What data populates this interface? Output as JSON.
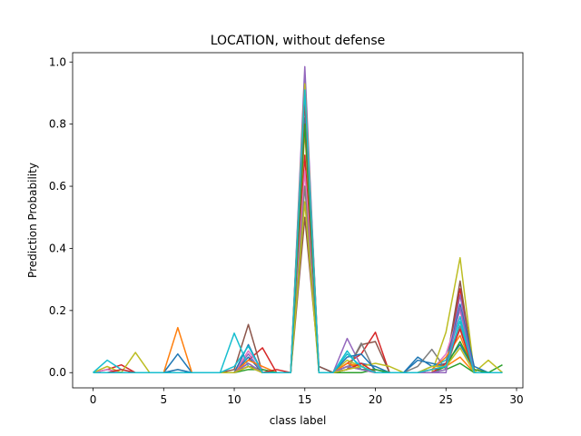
{
  "chart_data": {
    "type": "line",
    "title": "LOCATION, without defense",
    "xlabel": "class label",
    "ylabel": "Prediction Probability",
    "xlim": [
      -1.45,
      30.45
    ],
    "ylim": [
      -0.049,
      1.03
    ],
    "xticks": [
      0,
      5,
      10,
      15,
      20,
      25,
      30
    ],
    "xtick_labels": [
      "0",
      "5",
      "10",
      "15",
      "20",
      "25",
      "30"
    ],
    "yticks": [
      0.0,
      0.2,
      0.4,
      0.6,
      0.8,
      1.0
    ],
    "ytick_labels": [
      "0.0",
      "0.2",
      "0.4",
      "0.6",
      "0.8",
      "1.0"
    ],
    "grid": false,
    "x": [
      0,
      1,
      2,
      3,
      4,
      5,
      6,
      7,
      8,
      9,
      10,
      11,
      12,
      13,
      14,
      15,
      16,
      17,
      18,
      19,
      20,
      21,
      22,
      23,
      24,
      25,
      26,
      27,
      28,
      29
    ],
    "series": [
      {
        "color": "#1f77b4",
        "values": [
          0,
          0.01,
          0,
          0,
          0,
          0,
          0.06,
          0,
          0,
          0,
          0,
          0.05,
          0,
          0,
          0,
          0.82,
          0.02,
          0,
          0.02,
          0.03,
          0.02,
          0,
          0,
          0.05,
          0.02,
          0.03,
          0.09,
          0.01,
          0,
          0
        ]
      },
      {
        "color": "#ff7f0e",
        "values": [
          0,
          0,
          0,
          0,
          0,
          0,
          0.145,
          0,
          0,
          0,
          0,
          0.03,
          0,
          0,
          0,
          0.78,
          0,
          0,
          0.03,
          0.01,
          0,
          0,
          0,
          0,
          0.01,
          0.02,
          0.05,
          0,
          0,
          0
        ]
      },
      {
        "color": "#2ca02c",
        "values": [
          0,
          0,
          0,
          0,
          0,
          0,
          0,
          0,
          0,
          0,
          0,
          0.02,
          0.01,
          0,
          0,
          0.92,
          0,
          0,
          0,
          0,
          0.01,
          0,
          0,
          0,
          0,
          0.01,
          0.03,
          0,
          0,
          0.025
        ]
      },
      {
        "color": "#d62728",
        "values": [
          0,
          0.01,
          0.025,
          0,
          0,
          0,
          0,
          0,
          0,
          0,
          0,
          0.04,
          0.08,
          0,
          0,
          0.7,
          0,
          0,
          0.03,
          0.06,
          0.13,
          0,
          0,
          0,
          0.01,
          0.02,
          0.27,
          0.01,
          0,
          0
        ]
      },
      {
        "color": "#9467bd",
        "values": [
          0,
          0,
          0,
          0,
          0,
          0,
          0,
          0,
          0,
          0,
          0,
          0.06,
          0,
          0,
          0,
          0.985,
          0,
          0,
          0.11,
          0.02,
          0,
          0,
          0,
          0,
          0,
          0,
          0.25,
          0,
          0,
          0
        ]
      },
      {
        "color": "#8c564b",
        "values": [
          0,
          0,
          0,
          0,
          0,
          0,
          0,
          0,
          0,
          0,
          0.01,
          0.155,
          0,
          0,
          0,
          0.5,
          0.02,
          0,
          0.01,
          0.09,
          0.1,
          0,
          0,
          0,
          0,
          0.02,
          0.295,
          0,
          0,
          0
        ]
      },
      {
        "color": "#e377c2",
        "values": [
          0,
          0.01,
          0,
          0,
          0,
          0,
          0,
          0,
          0,
          0,
          0,
          0.07,
          0.01,
          0,
          0,
          0.65,
          0,
          0,
          0.02,
          0.01,
          0,
          0,
          0,
          0,
          0.01,
          0.06,
          0.2,
          0,
          0,
          0
        ]
      },
      {
        "color": "#7f7f7f",
        "values": [
          0,
          0,
          0,
          0,
          0,
          0,
          0.01,
          0,
          0,
          0,
          0,
          0.03,
          0,
          0,
          0,
          0.6,
          0,
          0,
          0.01,
          0.095,
          0,
          0,
          0,
          0.02,
          0.075,
          0.01,
          0.15,
          0,
          0,
          0
        ]
      },
      {
        "color": "#bcbd22",
        "values": [
          0,
          0.02,
          0,
          0.065,
          0,
          0,
          0,
          0,
          0,
          0,
          0,
          0.02,
          0,
          0,
          0,
          0.55,
          0,
          0,
          0.04,
          0.02,
          0.03,
          0.02,
          0,
          0,
          0,
          0.13,
          0.37,
          0,
          0.04,
          0
        ]
      },
      {
        "color": "#17becf",
        "values": [
          0,
          0.04,
          0.01,
          0,
          0,
          0,
          0,
          0,
          0,
          0,
          0.127,
          0.02,
          0,
          0,
          0,
          0.87,
          0,
          0,
          0.07,
          0.01,
          0,
          0,
          0,
          0,
          0.02,
          0.04,
          0.18,
          0,
          0,
          0
        ]
      },
      {
        "color": "#1f77b4",
        "values": [
          0,
          0,
          0,
          0,
          0,
          0,
          0.01,
          0,
          0,
          0,
          0,
          0.09,
          0,
          0,
          0,
          0.95,
          0,
          0,
          0.05,
          0.06,
          0.01,
          0,
          0,
          0.04,
          0.03,
          0.02,
          0.22,
          0.02,
          0,
          0
        ]
      },
      {
        "color": "#ff7f0e",
        "values": [
          0,
          0,
          0,
          0,
          0,
          0,
          0,
          0,
          0,
          0,
          0,
          0.04,
          0.02,
          0,
          0,
          0.9,
          0,
          0,
          0.03,
          0.02,
          0,
          0,
          0,
          0,
          0.01,
          0.05,
          0.12,
          0,
          0,
          0
        ]
      },
      {
        "color": "#2ca02c",
        "values": [
          0,
          0,
          0,
          0,
          0,
          0,
          0,
          0,
          0,
          0,
          0,
          0.01,
          0.01,
          0,
          0,
          0.8,
          0,
          0,
          0.02,
          0.01,
          0.01,
          0,
          0,
          0,
          0,
          0.02,
          0.1,
          0.01,
          0,
          0
        ]
      },
      {
        "color": "#d62728",
        "values": [
          0,
          0,
          0.01,
          0,
          0,
          0,
          0,
          0,
          0,
          0,
          0,
          0.02,
          0,
          0.01,
          0,
          0.88,
          0,
          0,
          0.01,
          0.03,
          0,
          0,
          0,
          0,
          0,
          0.03,
          0.14,
          0,
          0,
          0
        ]
      },
      {
        "color": "#9467bd",
        "values": [
          0,
          0,
          0,
          0,
          0,
          0,
          0,
          0,
          0,
          0,
          0,
          0.03,
          0,
          0,
          0,
          0.96,
          0,
          0,
          0.02,
          0.01,
          0,
          0,
          0,
          0,
          0,
          0.01,
          0.21,
          0,
          0,
          0
        ]
      },
      {
        "color": "#bcbd22",
        "values": [
          0,
          0,
          0,
          0,
          0,
          0,
          0,
          0,
          0,
          0,
          0,
          0.02,
          0,
          0,
          0,
          0.93,
          0,
          0,
          0.01,
          0.02,
          0,
          0,
          0,
          0,
          0.02,
          0.02,
          0.08,
          0,
          0,
          0
        ]
      },
      {
        "color": "#17becf",
        "values": [
          0,
          0,
          0,
          0,
          0,
          0,
          0,
          0,
          0,
          0,
          0.02,
          0.085,
          0,
          0,
          0,
          0.91,
          0,
          0,
          0.06,
          0.02,
          0,
          0,
          0,
          0,
          0.01,
          0.02,
          0.165,
          0,
          0,
          0
        ]
      }
    ]
  }
}
